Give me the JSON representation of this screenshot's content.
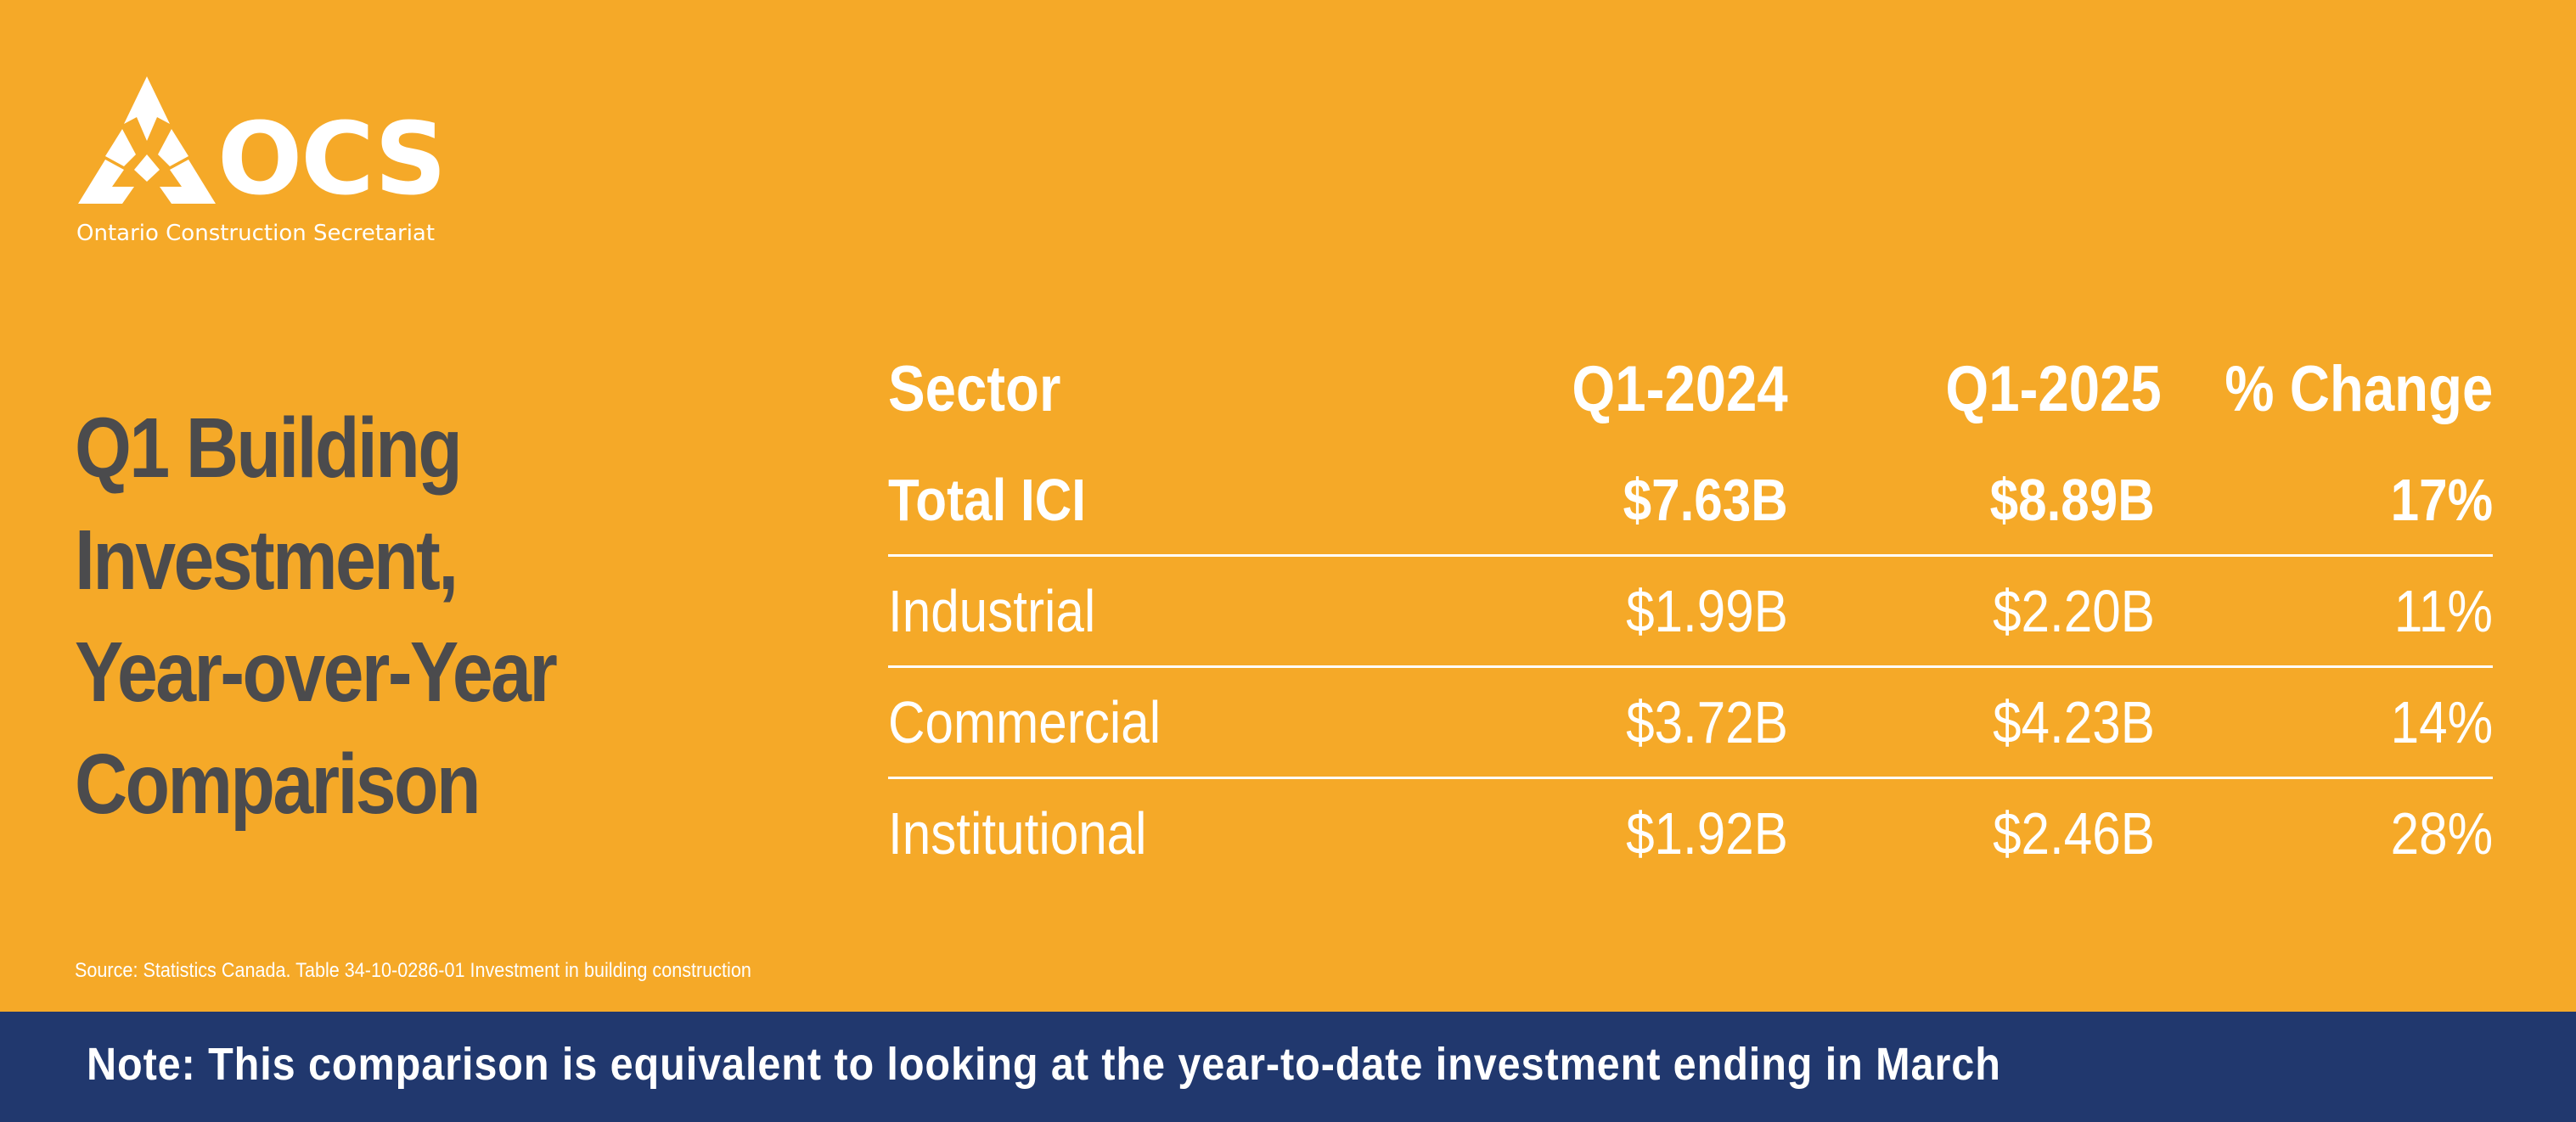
{
  "logo": {
    "wordmark": "OCS",
    "subtitle": "Ontario Construction Secretariat",
    "icon": "ocs-logo-icon"
  },
  "headline": {
    "lines": [
      "Q1 Building",
      "Investment,",
      "Year-over-Year",
      "Comparison"
    ]
  },
  "table": {
    "headers": [
      "Sector",
      "Q1-2024",
      "Q1-2025",
      "% Change"
    ],
    "rows": [
      [
        "Total ICI",
        "$7.63B",
        "$8.89B",
        "17%"
      ],
      [
        "Industrial",
        "$1.99B",
        "$2.20B",
        "11%"
      ],
      [
        "Commercial",
        "$3.72B",
        "$4.23B",
        "14%"
      ],
      [
        "Institutional",
        "$1.92B",
        "$2.46B",
        "28%"
      ]
    ]
  },
  "source": "Source: Statistics Canada. Table 34-10-0286-01  Investment in building construction",
  "note": "Note: This comparison is equivalent to looking at the year-to-date investment ending in March",
  "colors": {
    "background": "#F5A928",
    "headline": "#4B4B4D",
    "note_bar": "#21386E",
    "text": "#FFFFFF"
  }
}
